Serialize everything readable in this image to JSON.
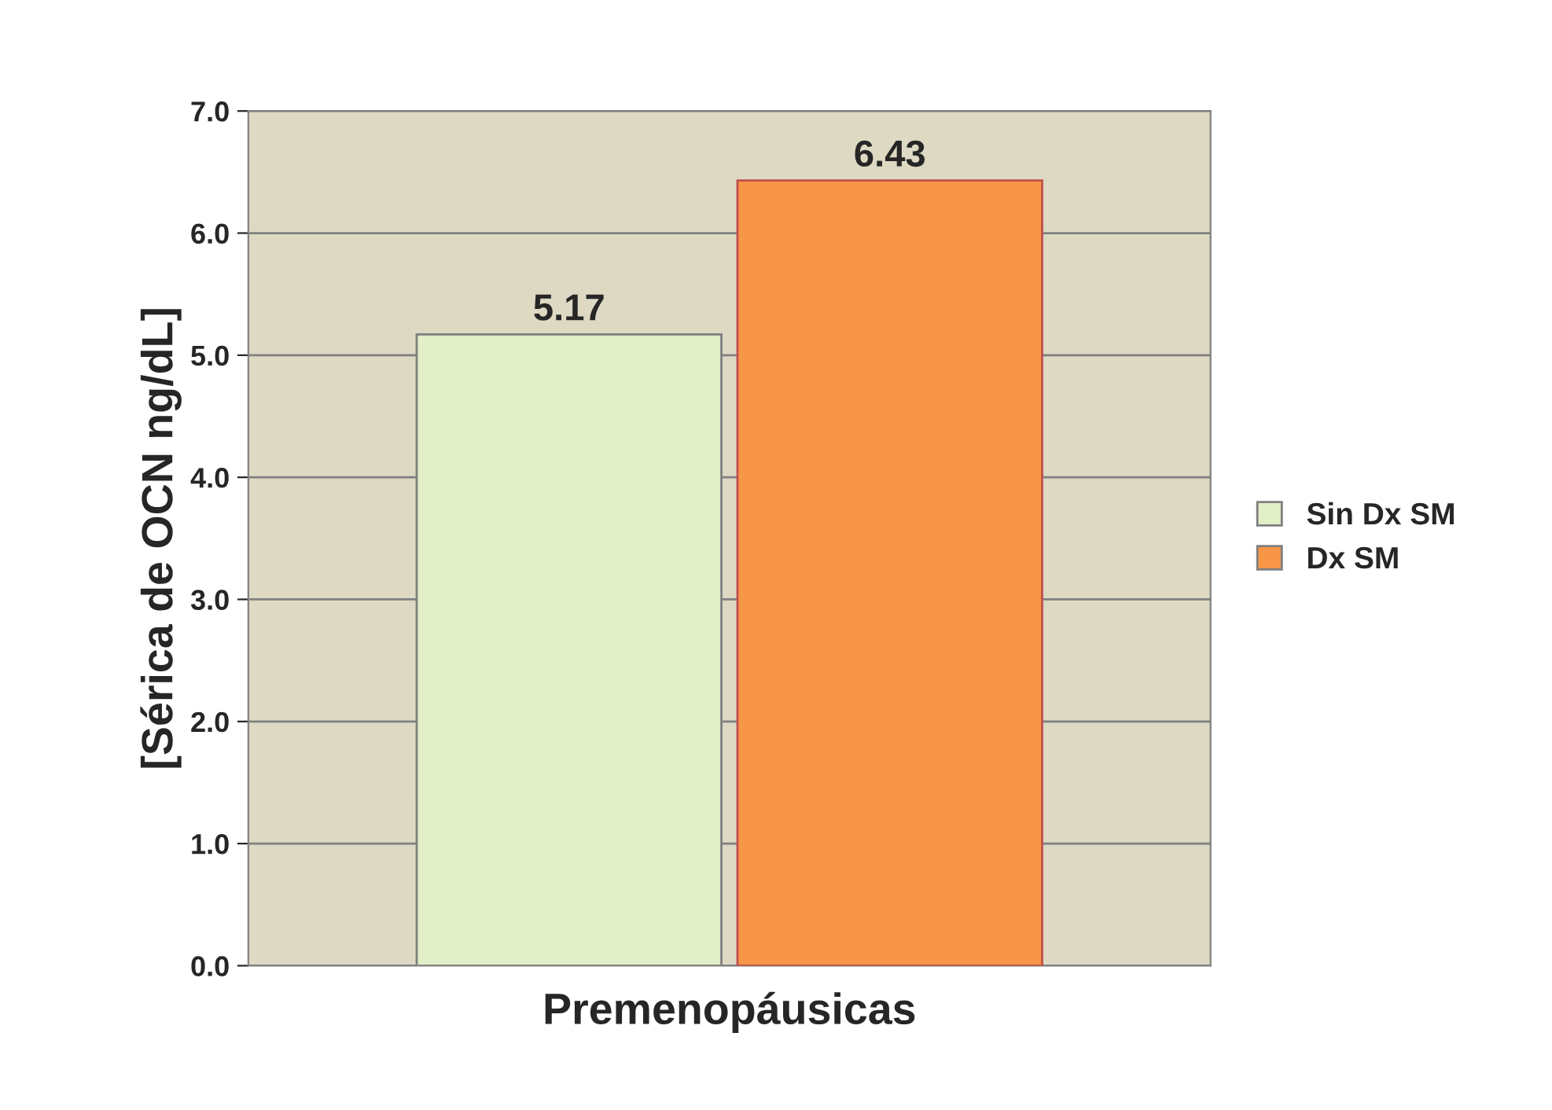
{
  "chart_data": {
    "type": "bar",
    "ylabel": "[Sérica de OCN ng/dL]",
    "categories": [
      "Premenopáusicas"
    ],
    "series": [
      {
        "name": "Sin Dx SM",
        "color": "#e2efc8",
        "values": [
          5.17
        ]
      },
      {
        "name": "Dx SM",
        "color": "#f79646",
        "values": [
          6.43
        ]
      }
    ],
    "ylim": [
      0,
      7
    ],
    "yticks": [
      {
        "value": 0,
        "label": "0.0"
      },
      {
        "value": 1,
        "label": "1.0"
      },
      {
        "value": 2,
        "label": "2.0"
      },
      {
        "value": 3,
        "label": "3.0"
      },
      {
        "value": 4,
        "label": "4.0"
      },
      {
        "value": 5,
        "label": "5.0"
      },
      {
        "value": 6,
        "label": "6.0"
      },
      {
        "value": 7,
        "label": "7.0"
      }
    ],
    "grid": "y",
    "legend": "right",
    "data_labels": true
  }
}
